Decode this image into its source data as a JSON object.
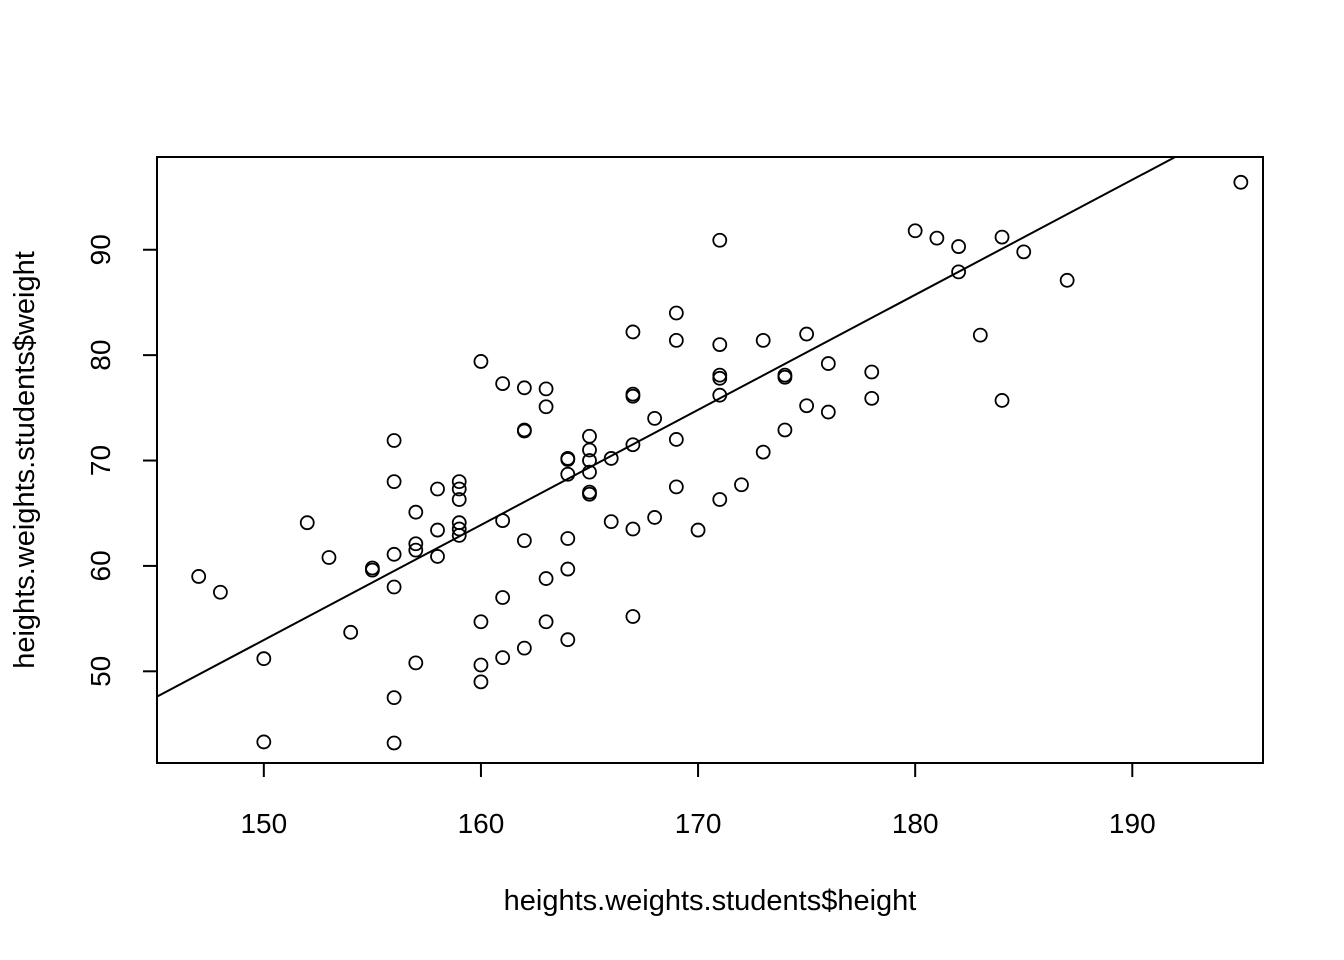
{
  "chart_data": {
    "type": "scatter",
    "title": "",
    "xlabel": "heights.weights.students$height",
    "ylabel": "heights.weights.students$weight",
    "xlim": [
      145.08,
      196.02
    ],
    "ylim": [
      41.3,
      98.8
    ],
    "x_ticks": [
      150,
      160,
      170,
      180,
      190
    ],
    "y_ticks": [
      50,
      60,
      70,
      80,
      90
    ],
    "grid": false,
    "legend": "none",
    "regression_line": {
      "intercept": -110.8,
      "slope": 1.0918
    },
    "points": [
      {
        "x": 147,
        "y": 59.0
      },
      {
        "x": 148,
        "y": 57.5
      },
      {
        "x": 150,
        "y": 51.2
      },
      {
        "x": 150,
        "y": 43.3
      },
      {
        "x": 152,
        "y": 64.1
      },
      {
        "x": 153,
        "y": 60.8
      },
      {
        "x": 154,
        "y": 53.7
      },
      {
        "x": 155,
        "y": 59.8
      },
      {
        "x": 155,
        "y": 59.6
      },
      {
        "x": 156,
        "y": 71.9
      },
      {
        "x": 156,
        "y": 68.0
      },
      {
        "x": 156,
        "y": 61.1
      },
      {
        "x": 156,
        "y": 58.0
      },
      {
        "x": 156,
        "y": 47.5
      },
      {
        "x": 156,
        "y": 43.2
      },
      {
        "x": 157,
        "y": 65.1
      },
      {
        "x": 157,
        "y": 62.1
      },
      {
        "x": 157,
        "y": 61.5
      },
      {
        "x": 157,
        "y": 50.8
      },
      {
        "x": 158,
        "y": 67.3
      },
      {
        "x": 158,
        "y": 63.4
      },
      {
        "x": 158,
        "y": 60.9
      },
      {
        "x": 159,
        "y": 68.0
      },
      {
        "x": 159,
        "y": 67.3
      },
      {
        "x": 159,
        "y": 66.3
      },
      {
        "x": 159,
        "y": 64.1
      },
      {
        "x": 159,
        "y": 63.5
      },
      {
        "x": 159,
        "y": 62.9
      },
      {
        "x": 160,
        "y": 79.4
      },
      {
        "x": 160,
        "y": 54.7
      },
      {
        "x": 160,
        "y": 50.6
      },
      {
        "x": 160,
        "y": 49.0
      },
      {
        "x": 161,
        "y": 77.3
      },
      {
        "x": 161,
        "y": 64.3
      },
      {
        "x": 161,
        "y": 57.0
      },
      {
        "x": 161,
        "y": 51.3
      },
      {
        "x": 162,
        "y": 76.9
      },
      {
        "x": 162,
        "y": 72.9
      },
      {
        "x": 162,
        "y": 72.8
      },
      {
        "x": 162,
        "y": 62.4
      },
      {
        "x": 162,
        "y": 52.2
      },
      {
        "x": 163,
        "y": 76.8
      },
      {
        "x": 163,
        "y": 75.1
      },
      {
        "x": 163,
        "y": 58.8
      },
      {
        "x": 163,
        "y": 54.7
      },
      {
        "x": 164,
        "y": 70.2
      },
      {
        "x": 164,
        "y": 70.1
      },
      {
        "x": 164,
        "y": 68.7
      },
      {
        "x": 164,
        "y": 62.6
      },
      {
        "x": 164,
        "y": 59.7
      },
      {
        "x": 164,
        "y": 53.0
      },
      {
        "x": 165,
        "y": 72.3
      },
      {
        "x": 165,
        "y": 71.0
      },
      {
        "x": 165,
        "y": 70.0
      },
      {
        "x": 165,
        "y": 68.9
      },
      {
        "x": 165,
        "y": 67.0
      },
      {
        "x": 165,
        "y": 66.8
      },
      {
        "x": 166,
        "y": 70.2
      },
      {
        "x": 166,
        "y": 64.2
      },
      {
        "x": 167,
        "y": 82.2
      },
      {
        "x": 167,
        "y": 76.3
      },
      {
        "x": 167,
        "y": 76.1
      },
      {
        "x": 167,
        "y": 71.5
      },
      {
        "x": 167,
        "y": 63.5
      },
      {
        "x": 167,
        "y": 55.2
      },
      {
        "x": 168,
        "y": 74.0
      },
      {
        "x": 168,
        "y": 64.6
      },
      {
        "x": 169,
        "y": 84.0
      },
      {
        "x": 169,
        "y": 81.4
      },
      {
        "x": 169,
        "y": 72.0
      },
      {
        "x": 169,
        "y": 67.5
      },
      {
        "x": 170,
        "y": 63.4
      },
      {
        "x": 171,
        "y": 90.9
      },
      {
        "x": 171,
        "y": 81.0
      },
      {
        "x": 171,
        "y": 78.1
      },
      {
        "x": 171,
        "y": 77.8
      },
      {
        "x": 171,
        "y": 76.2
      },
      {
        "x": 171,
        "y": 66.3
      },
      {
        "x": 172,
        "y": 67.7
      },
      {
        "x": 173,
        "y": 81.4
      },
      {
        "x": 173,
        "y": 70.8
      },
      {
        "x": 174,
        "y": 78.1
      },
      {
        "x": 174,
        "y": 77.9
      },
      {
        "x": 174,
        "y": 72.9
      },
      {
        "x": 175,
        "y": 82.0
      },
      {
        "x": 175,
        "y": 75.2
      },
      {
        "x": 176,
        "y": 79.2
      },
      {
        "x": 176,
        "y": 74.6
      },
      {
        "x": 178,
        "y": 78.4
      },
      {
        "x": 178,
        "y": 75.9
      },
      {
        "x": 180,
        "y": 91.8
      },
      {
        "x": 181,
        "y": 91.1
      },
      {
        "x": 182,
        "y": 90.3
      },
      {
        "x": 182,
        "y": 87.9
      },
      {
        "x": 183,
        "y": 81.9
      },
      {
        "x": 184,
        "y": 91.2
      },
      {
        "x": 184,
        "y": 75.7
      },
      {
        "x": 185,
        "y": 89.8
      },
      {
        "x": 187,
        "y": 87.1
      },
      {
        "x": 195,
        "y": 96.4
      }
    ]
  }
}
